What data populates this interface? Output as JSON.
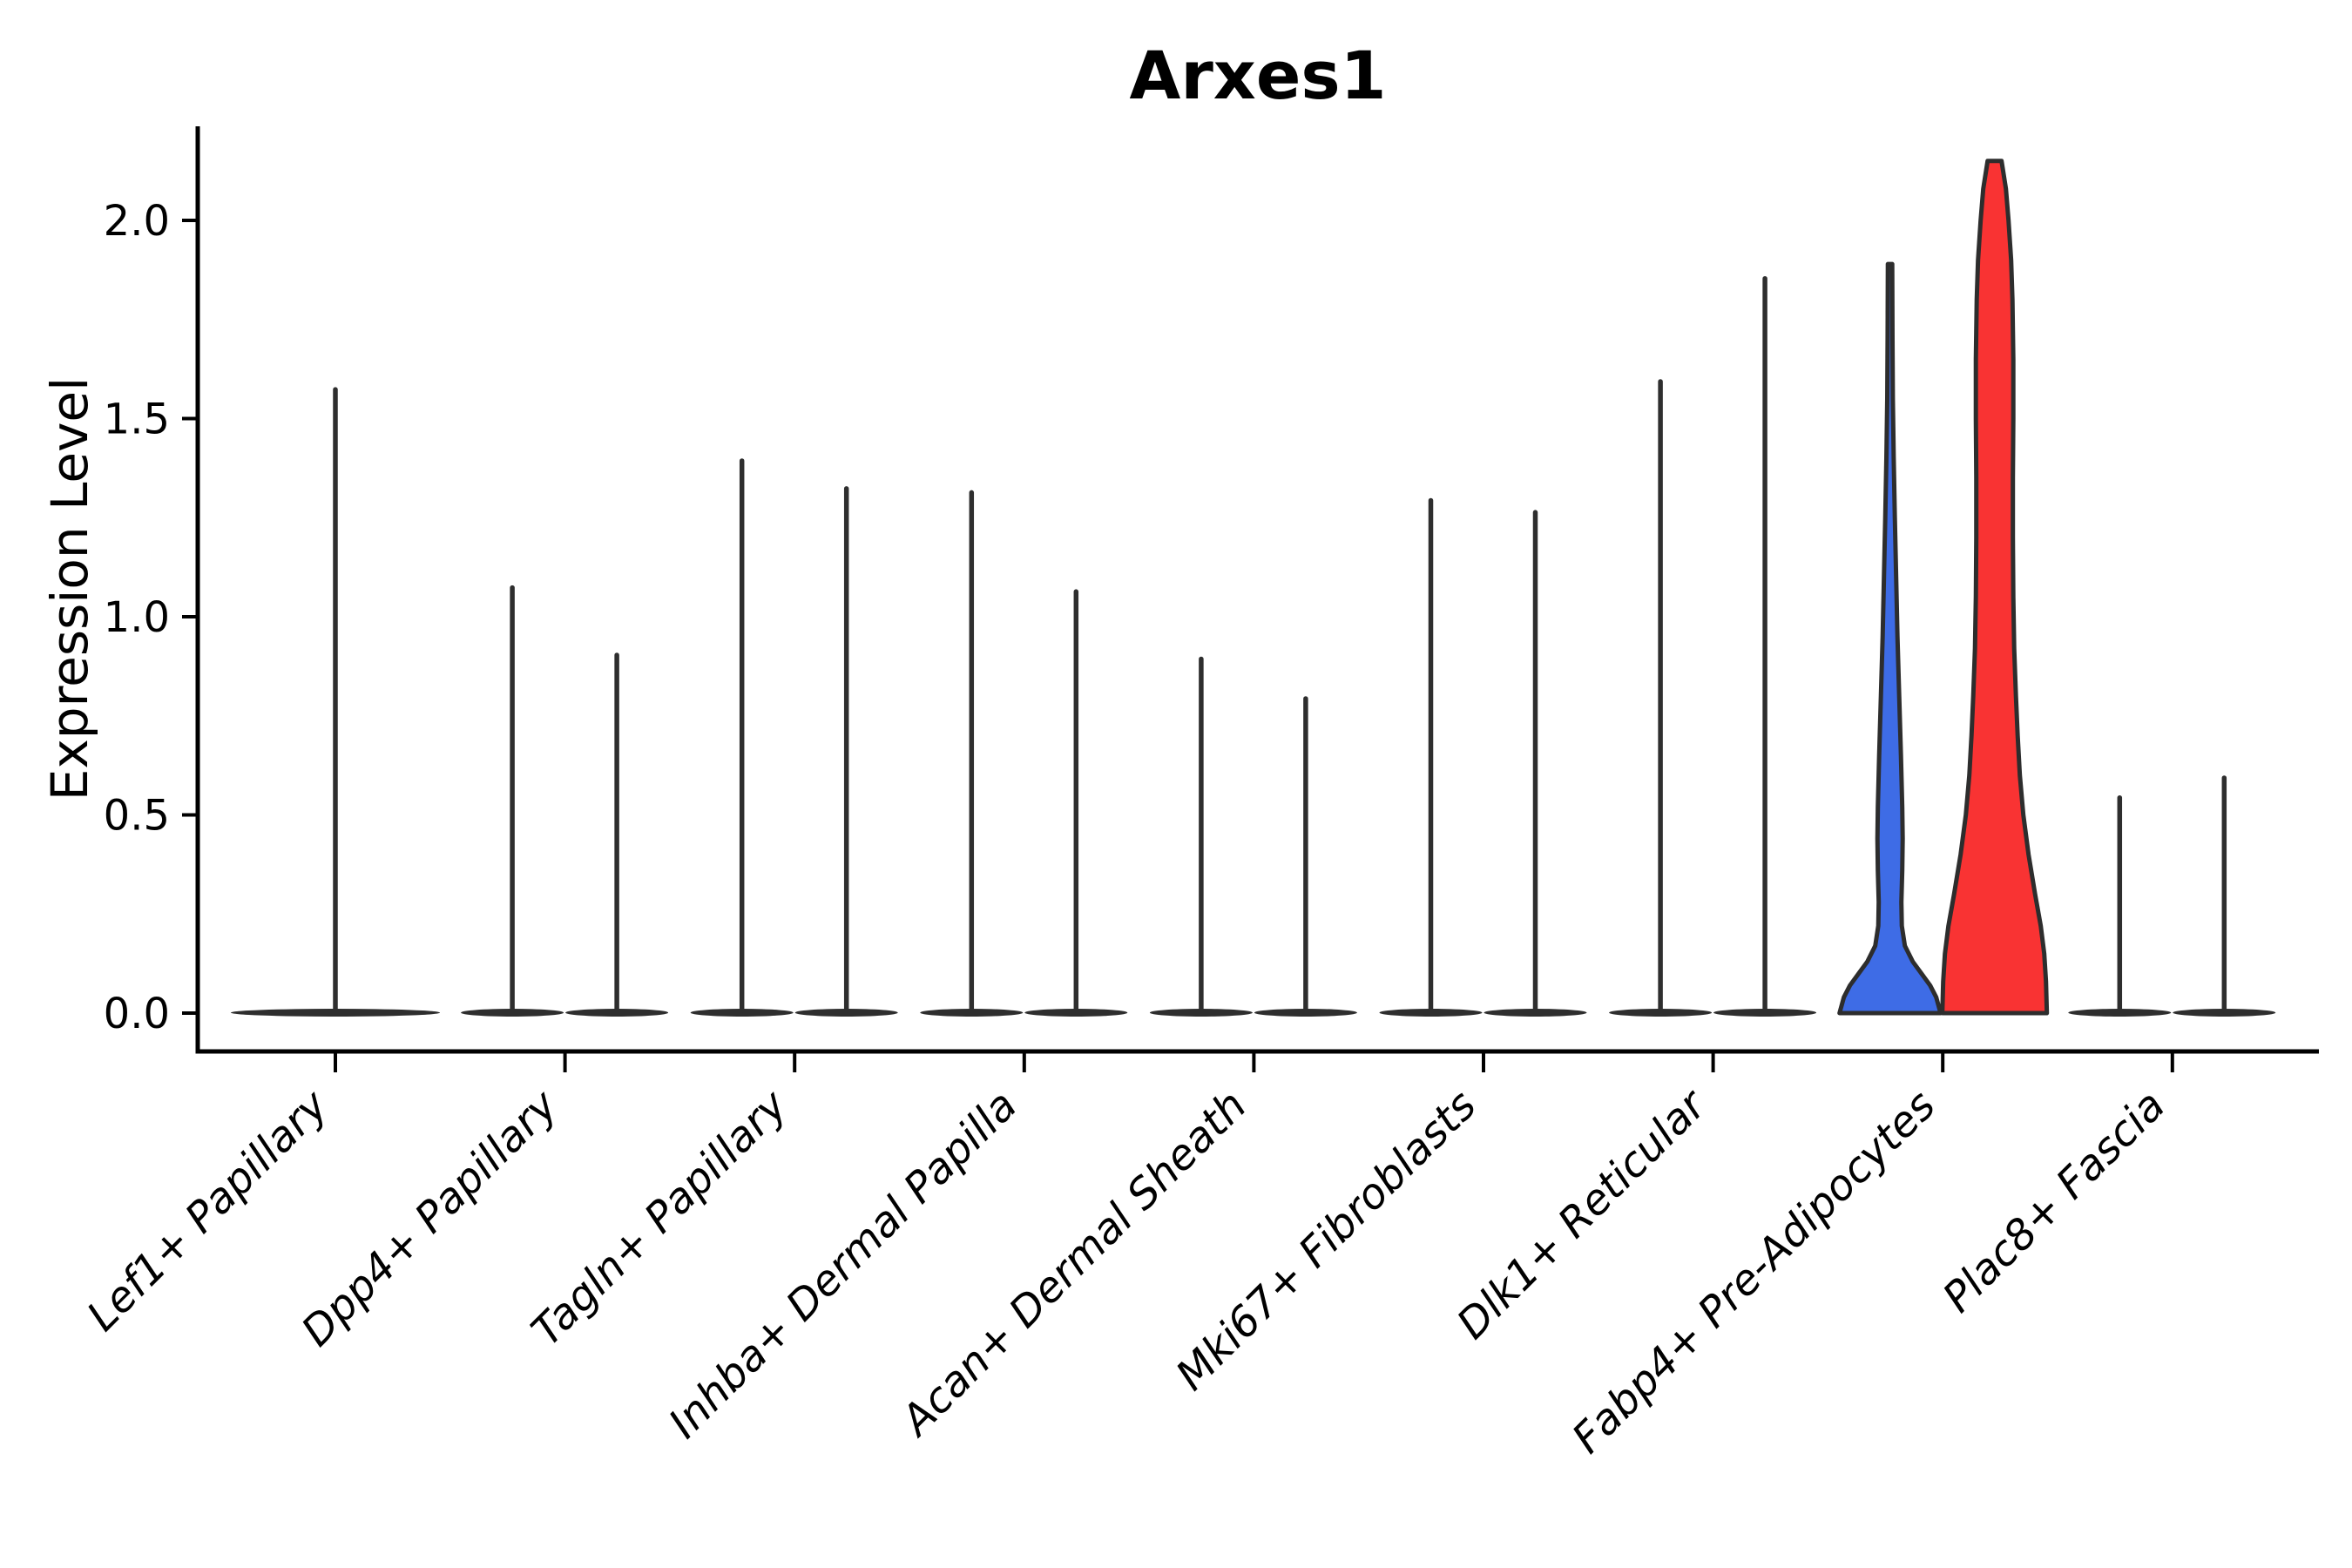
{
  "chart_data": {
    "type": "violin",
    "title": "Arxes1",
    "xlabel": "",
    "ylabel": "Expression Level",
    "legend": "none",
    "grid": false,
    "ylim": [
      0,
      2.25
    ],
    "y_ticks": [
      {
        "label": "0.0",
        "value": 0.0
      },
      {
        "label": "0.5",
        "value": 0.5
      },
      {
        "label": "1.0",
        "value": 1.0
      },
      {
        "label": "1.5",
        "value": 1.5
      },
      {
        "label": "2.0",
        "value": 2.0
      }
    ],
    "colors": {
      "spike": "#2e2e2e",
      "outline": "#2d2d2d",
      "axis": "#000000",
      "highlight_blue": "#3E6CE6",
      "highlight_red": "#F93333",
      "background": "#ffffff"
    },
    "categories": [
      {
        "label": "Lef1+ Papillary",
        "violins": [
          {
            "side": "center",
            "style": "spike",
            "max_expression": 1.58
          }
        ]
      },
      {
        "label": "Dpp4+ Papillary",
        "violins": [
          {
            "side": "left",
            "style": "spike",
            "max_expression": 1.08
          },
          {
            "side": "right",
            "style": "spike",
            "max_expression": 0.91
          }
        ]
      },
      {
        "label": "Tagln+ Papillary",
        "violins": [
          {
            "side": "left",
            "style": "spike",
            "max_expression": 1.4
          },
          {
            "side": "right",
            "style": "spike",
            "max_expression": 1.33
          }
        ]
      },
      {
        "label": "Inhba+ Dermal Papilla",
        "violins": [
          {
            "side": "left",
            "style": "spike",
            "max_expression": 1.32
          },
          {
            "side": "right",
            "style": "spike",
            "max_expression": 1.07
          }
        ]
      },
      {
        "label": "Acan+ Dermal Sheath",
        "violins": [
          {
            "side": "left",
            "style": "spike",
            "max_expression": 0.9
          },
          {
            "side": "right",
            "style": "spike",
            "max_expression": 0.8
          }
        ]
      },
      {
        "label": "Mki67+ Fibroblasts",
        "violins": [
          {
            "side": "left",
            "style": "spike",
            "max_expression": 1.3
          },
          {
            "side": "right",
            "style": "spike",
            "max_expression": 1.27
          }
        ]
      },
      {
        "label": "Dlk1+ Reticular",
        "violins": [
          {
            "side": "left",
            "style": "spike",
            "max_expression": 1.6
          },
          {
            "side": "right",
            "style": "spike",
            "max_expression": 1.86
          }
        ]
      },
      {
        "label": "Fabp4+ Pre-Adipocytes",
        "violins": [
          {
            "side": "left",
            "style": "shaped",
            "max_expression": 1.89,
            "fill": "#3E6CE6",
            "profile": [
              [
                1.89,
                2.5
              ],
              [
                1.7,
                2.8
              ],
              [
                1.55,
                3.2
              ],
              [
                1.4,
                4.2
              ],
              [
                1.25,
                5.5
              ],
              [
                1.1,
                7
              ],
              [
                0.95,
                8.5
              ],
              [
                0.8,
                10.5
              ],
              [
                0.65,
                12.5
              ],
              [
                0.52,
                14
              ],
              [
                0.44,
                14.5
              ],
              [
                0.36,
                14
              ],
              [
                0.28,
                13
              ],
              [
                0.22,
                13.5
              ],
              [
                0.17,
                17
              ],
              [
                0.13,
                26
              ],
              [
                0.1,
                36
              ],
              [
                0.07,
                46
              ],
              [
                0.04,
                53
              ],
              [
                0.0,
                58
              ]
            ]
          },
          {
            "side": "right",
            "style": "shaped",
            "max_expression": 2.15,
            "fill": "#F93333",
            "profile": [
              [
                2.15,
                8
              ],
              [
                2.08,
                13
              ],
              [
                2.0,
                16
              ],
              [
                1.9,
                19
              ],
              [
                1.8,
                20.5
              ],
              [
                1.65,
                21.5
              ],
              [
                1.5,
                21.5
              ],
              [
                1.35,
                21
              ],
              [
                1.2,
                21
              ],
              [
                1.05,
                21.5
              ],
              [
                0.92,
                22.5
              ],
              [
                0.8,
                24.5
              ],
              [
                0.7,
                26.5
              ],
              [
                0.6,
                29
              ],
              [
                0.5,
                33
              ],
              [
                0.4,
                39
              ],
              [
                0.3,
                46.5
              ],
              [
                0.22,
                53
              ],
              [
                0.15,
                57
              ],
              [
                0.08,
                59
              ],
              [
                0.0,
                60
              ]
            ]
          }
        ]
      },
      {
        "label": "Plac8+ Fascia",
        "violins": [
          {
            "side": "left",
            "style": "spike",
            "max_expression": 0.55
          },
          {
            "side": "right",
            "style": "spike",
            "max_expression": 0.6
          }
        ]
      }
    ]
  }
}
